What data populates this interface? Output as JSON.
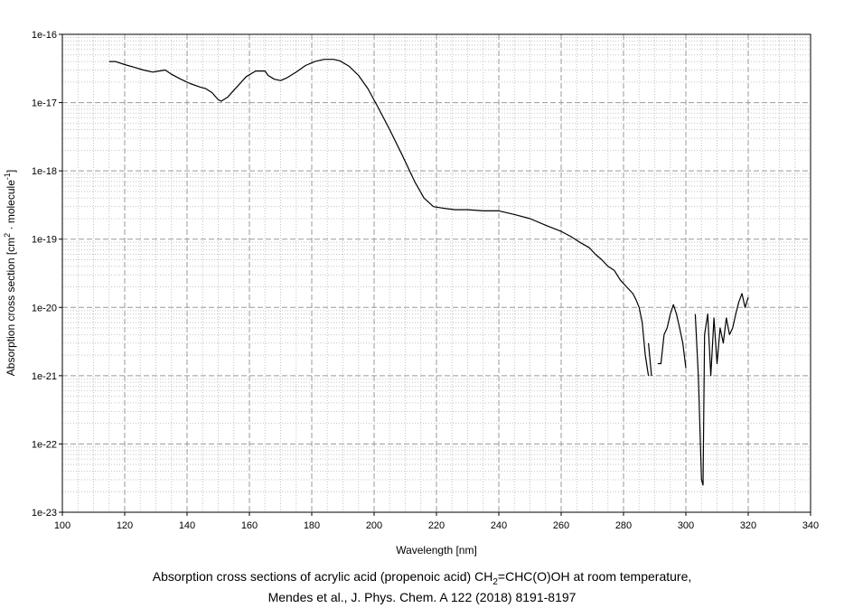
{
  "chart_data": {
    "type": "line",
    "xlabel": "Wavelength [nm]",
    "ylabel": {
      "prefix": "Absorption cross section [cm",
      "sup1": "2",
      "middle": " · molecule",
      "sup2": "-1",
      "suffix": "]"
    },
    "xlim": [
      100,
      340
    ],
    "x_ticks": [
      100,
      120,
      140,
      160,
      180,
      200,
      220,
      240,
      260,
      280,
      300,
      320,
      340
    ],
    "ylim": [
      1e-23,
      1e-16
    ],
    "yscale": "log",
    "y_tick_labels": [
      "1e-23",
      "1e-22",
      "1e-21",
      "1e-20",
      "1e-19",
      "1e-18",
      "1e-17",
      "1e-16"
    ],
    "grid": true,
    "legend": "none",
    "line_color": "#000000",
    "series": [
      {
        "x": [
          115,
          117,
          120,
          123,
          126,
          129,
          131,
          133,
          135,
          138,
          141,
          144,
          146,
          148,
          150,
          151,
          153,
          156,
          159,
          162,
          165,
          166,
          168,
          170,
          172,
          175,
          178,
          181,
          184,
          187,
          189,
          192,
          195,
          198,
          201,
          205,
          209,
          213,
          216,
          219,
          221,
          223,
          226,
          230,
          235,
          240,
          245,
          250,
          255,
          260,
          263,
          266,
          269,
          271,
          273,
          275,
          277,
          279,
          281,
          283,
          284,
          285,
          286,
          287,
          288
        ],
        "y": [
          4e-17,
          4e-17,
          3.6e-17,
          3.3e-17,
          3e-17,
          2.8e-17,
          2.9e-17,
          3e-17,
          2.6e-17,
          2.2e-17,
          1.9e-17,
          1.7e-17,
          1.6e-17,
          1.4e-17,
          1.1e-17,
          1.05e-17,
          1.2e-17,
          1.7e-17,
          2.4e-17,
          2.9e-17,
          2.9e-17,
          2.5e-17,
          2.2e-17,
          2.1e-17,
          2.3e-17,
          2.8e-17,
          3.5e-17,
          4e-17,
          4.3e-17,
          4.3e-17,
          4.1e-17,
          3.4e-17,
          2.5e-17,
          1.6e-17,
          9e-18,
          4e-18,
          1.7e-18,
          7e-19,
          4e-19,
          3e-19,
          2.9e-19,
          2.8e-19,
          2.7e-19,
          2.7e-19,
          2.6e-19,
          2.6e-19,
          2.3e-19,
          2e-19,
          1.6e-19,
          1.3e-19,
          1.1e-19,
          9e-20,
          7.5e-20,
          6e-20,
          5e-20,
          4e-20,
          3.5e-20,
          2.5e-20,
          2e-20,
          1.6e-20,
          1.3e-20,
          1e-20,
          6e-21,
          2e-21,
          1e-21
        ]
      },
      {
        "x": [
          288,
          289
        ],
        "y": [
          3e-21,
          1e-21
        ]
      },
      {
        "x": [
          291,
          292,
          293,
          294,
          295,
          296,
          297,
          298,
          299,
          300
        ],
        "y": [
          1.5e-21,
          1.5e-21,
          4e-21,
          5e-21,
          8e-21,
          1.1e-20,
          8e-21,
          5e-21,
          3e-21,
          1.3e-21
        ]
      },
      {
        "x": [
          303,
          304,
          305,
          305.5,
          306,
          307,
          308,
          309,
          310,
          311,
          312,
          313,
          314,
          315,
          316,
          317,
          318,
          319,
          320
        ],
        "y": [
          8e-21,
          1e-21,
          3e-23,
          2.5e-23,
          4e-21,
          8e-21,
          1e-21,
          7e-21,
          1.5e-21,
          5e-21,
          3e-21,
          7e-21,
          4e-21,
          5e-21,
          8e-21,
          1.2e-20,
          1.6e-20,
          1e-20,
          1.4e-20
        ]
      }
    ]
  },
  "caption": {
    "line1_pre": "Absorption cross sections of acrylic acid (propenoic acid) CH",
    "line1_sub": "2",
    "line1_post": "=CHC(O)OH at room temperature,",
    "line2": "Mendes et al., J. Phys. Chem. A 122 (2018) 8191-8197"
  }
}
